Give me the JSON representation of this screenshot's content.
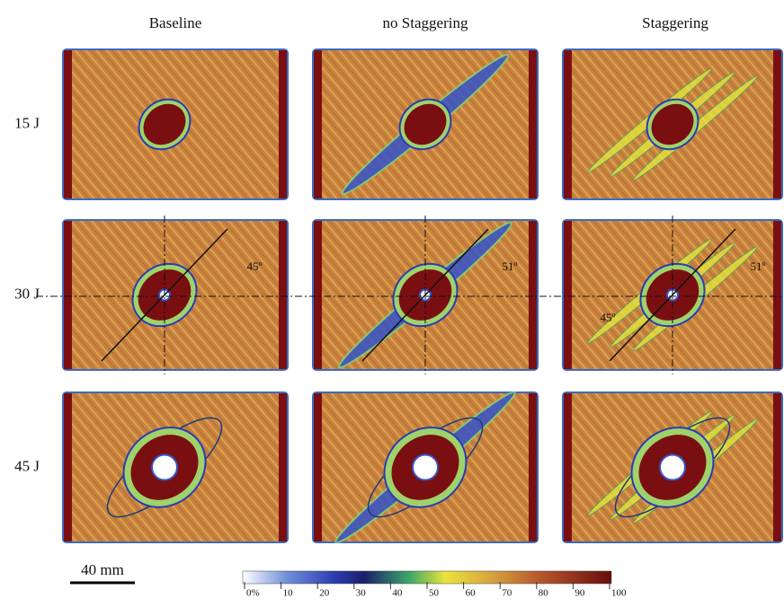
{
  "columns": [
    "Baseline",
    "no Staggering",
    "Staggering"
  ],
  "rows": [
    "15 J",
    "30 J",
    "45 J"
  ],
  "annotations": [
    "45º",
    "51º",
    "51º",
    "45º"
  ],
  "scale_bar": "40 mm",
  "colorbar": {
    "labels": [
      "0%",
      "10",
      "20",
      "30",
      "40",
      "50",
      "60",
      "70",
      "80",
      "90",
      "100"
    ]
  }
}
